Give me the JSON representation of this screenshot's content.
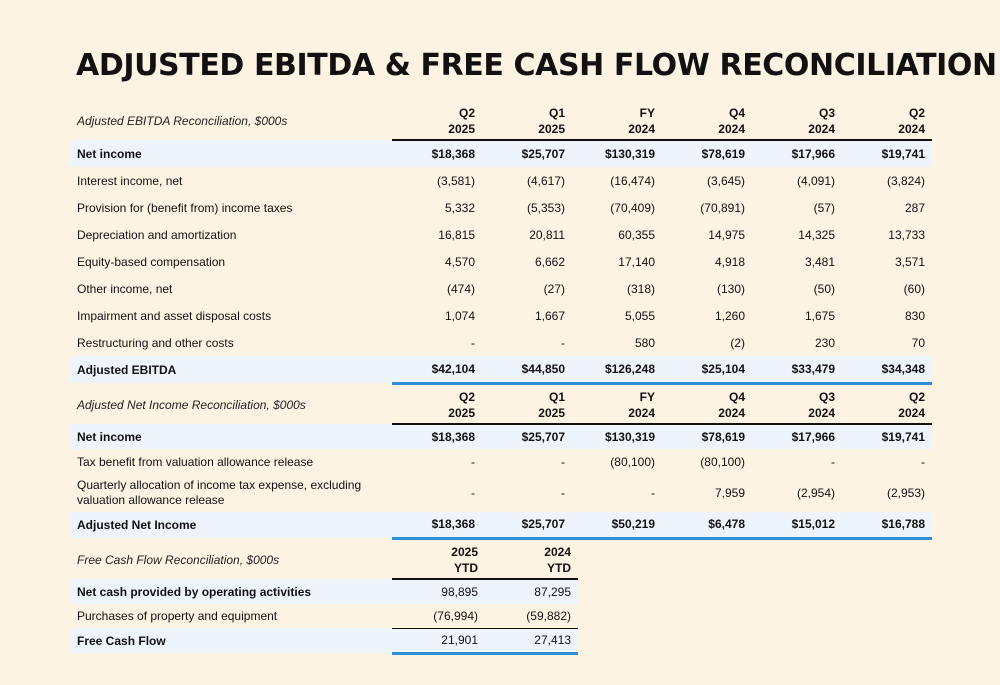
{
  "title": "ADJUSTED EBITDA & FREE CASH FLOW RECONCILIATION",
  "accent_color": "#2d8fd5",
  "ebitda": {
    "header_label": "Adjusted EBITDA Reconciliation, $000s",
    "columns": [
      {
        "top": "Q2",
        "bottom": "2025"
      },
      {
        "top": "Q1",
        "bottom": "2025"
      },
      {
        "top": "FY",
        "bottom": "2024"
      },
      {
        "top": "Q4",
        "bottom": "2024"
      },
      {
        "top": "Q3",
        "bottom": "2024"
      },
      {
        "top": "Q2",
        "bottom": "2024"
      }
    ],
    "rows": [
      {
        "label": "Net income",
        "values": [
          "$18,368",
          "$25,707",
          "$130,319",
          "$78,619",
          "$17,966",
          "$19,741"
        ]
      },
      {
        "label": "Interest income, net",
        "values": [
          "(3,581)",
          "(4,617)",
          "(16,474)",
          "(3,645)",
          "(4,091)",
          "(3,824)"
        ]
      },
      {
        "label": "Provision for (benefit from) income taxes",
        "values": [
          "5,332",
          "(5,353)",
          "(70,409)",
          "(70,891)",
          "(57)",
          "287"
        ]
      },
      {
        "label": "Depreciation and amortization",
        "values": [
          "16,815",
          "20,811",
          "60,355",
          "14,975",
          "14,325",
          "13,733"
        ]
      },
      {
        "label": "Equity-based compensation",
        "values": [
          "4,570",
          "6,662",
          "17,140",
          "4,918",
          "3,481",
          "3,571"
        ]
      },
      {
        "label": "Other income, net",
        "values": [
          "(474)",
          "(27)",
          "(318)",
          "(130)",
          "(50)",
          "(60)"
        ]
      },
      {
        "label": "Impairment and asset disposal costs",
        "values": [
          "1,074",
          "1,667",
          "5,055",
          "1,260",
          "1,675",
          "830"
        ]
      },
      {
        "label": "Restructuring and other costs",
        "values": [
          "-",
          "-",
          "580",
          "(2)",
          "230",
          "70"
        ]
      },
      {
        "label": "Adjusted EBITDA",
        "values": [
          "$42,104",
          "$44,850",
          "$126,248",
          "$25,104",
          "$33,479",
          "$34,348"
        ]
      }
    ]
  },
  "net_income": {
    "header_label": "Adjusted Net Income Reconciliation, $000s",
    "columns": [
      {
        "top": "Q2",
        "bottom": "2025"
      },
      {
        "top": "Q1",
        "bottom": "2025"
      },
      {
        "top": "FY",
        "bottom": "2024"
      },
      {
        "top": "Q4",
        "bottom": "2024"
      },
      {
        "top": "Q3",
        "bottom": "2024"
      },
      {
        "top": "Q2",
        "bottom": "2024"
      }
    ],
    "rows": [
      {
        "label": "Net income",
        "values": [
          "$18,368",
          "$25,707",
          "$130,319",
          "$78,619",
          "$17,966",
          "$19,741"
        ]
      },
      {
        "label": "Tax benefit from valuation allowance release",
        "values": [
          "-",
          "-",
          "(80,100)",
          "(80,100)",
          "-",
          "-"
        ]
      },
      {
        "label": "Quarterly allocation of income tax expense, excluding valuation allowance release",
        "values": [
          "-",
          "-",
          "-",
          "7,959",
          "(2,954)",
          "(2,953)"
        ]
      },
      {
        "label": "Adjusted Net Income",
        "values": [
          "$18,368",
          "$25,707",
          "$50,219",
          "$6,478",
          "$15,012",
          "$16,788"
        ]
      }
    ]
  },
  "fcf": {
    "header_label": "Free Cash Flow Reconciliation, $000s",
    "columns": [
      {
        "top": "2025",
        "bottom": "YTD"
      },
      {
        "top": "2024",
        "bottom": "YTD"
      }
    ],
    "rows": [
      {
        "label": "Net cash provided by operating activities",
        "values": [
          "98,895",
          "87,295"
        ]
      },
      {
        "label": "Purchases of property and equipment",
        "values": [
          "(76,994)",
          "(59,882)"
        ]
      },
      {
        "label": "Free Cash Flow",
        "values": [
          "21,901",
          "27,413"
        ]
      }
    ]
  }
}
